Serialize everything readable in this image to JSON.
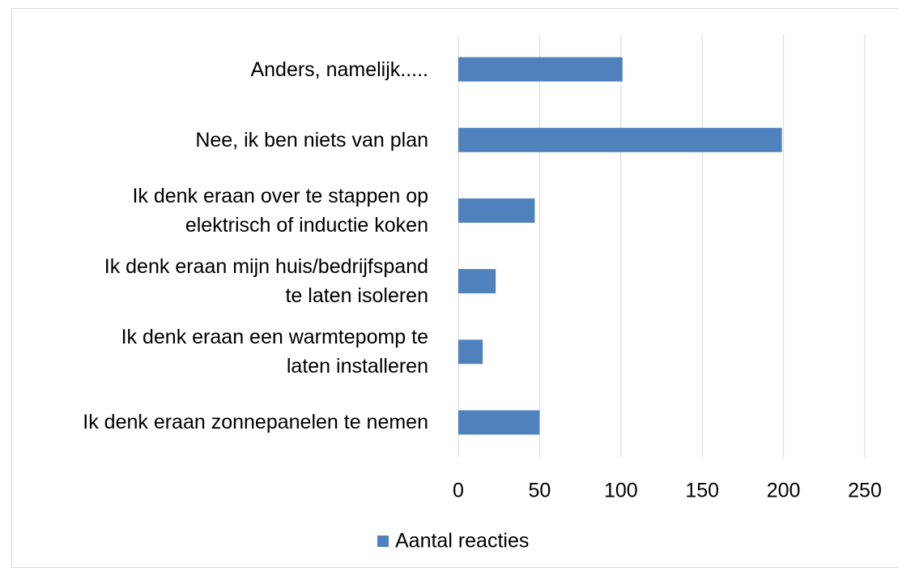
{
  "chart_data": {
    "type": "hbar",
    "categories": [
      "Anders, namelijk.....",
      "Nee, ik ben niets van plan",
      "Ik denk eraan over te stappen op\nelektrisch of inductie koken",
      "Ik denk eraan mijn huis/bedrijfspand\nte laten isoleren",
      "Ik denk eraan een warmtepomp te\nlaten installeren",
      "Ik denk eraan zonnepanelen te nemen"
    ],
    "series": [
      {
        "name": "Aantal reacties",
        "color": "#4f81bd",
        "values": [
          101,
          199,
          47,
          23,
          15,
          50
        ]
      }
    ],
    "xlim": [
      0,
      250
    ],
    "xticks": [
      0,
      50,
      100,
      150,
      200,
      250
    ],
    "grid": true,
    "legend": "bottom"
  }
}
